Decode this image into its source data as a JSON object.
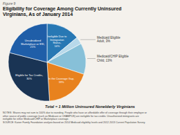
{
  "chart_data": {
    "type": "pie",
    "title": "Eligibility for Coverage Among Currently Uninsured\nVirginians, As of January 2014",
    "subtitle": "Total = 1 Million Uninsured Nonelderly Virginians",
    "annotations": [
      "Figure 9",
      "NOTES: Shares may not sum to 100% due to rounding. People who have an affordable offer of coverage through their employer or\nother source of public coverage (such as Medicare or CHAMPUS) are ineligible for tax credits. Unauthorized immigrants are\nineligible for either Medicaid/CHIP or Marketplace coverage.\nSOURCE: Kaiser Family Foundation analysis based on 2014 Medicaid eligibility levels and 2012-2013 Current Population Survey."
    ],
    "categories": [
      "Ineligible Due to\nImmigration\nStatus,\n14%",
      "Medicaid Eligible\nAdult, 3%",
      "Medicaid/CHIP Eligible\nChild, 13%",
      "In the Coverage Gap,\n19%",
      "Eligible for Tax Credits,\n30%",
      "Unsubsidized\nMarketplace or ESI,\n21%"
    ],
    "values": [
      14,
      3,
      13,
      19,
      30,
      21
    ],
    "colors": [
      "#2878b4",
      "#b8d9ea",
      "#87c0d8",
      "#e8821e",
      "#1a3454",
      "#1f5ea8"
    ]
  }
}
